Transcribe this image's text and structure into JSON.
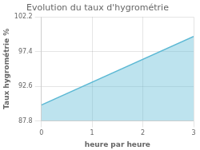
{
  "chart_data": {
    "type": "area",
    "title": "Evolution du taux d'hygrométrie",
    "x_label": "heure par heure",
    "y_label": "Taux hygrométrie %",
    "x": [
      0,
      3
    ],
    "values": [
      90.0,
      99.5
    ],
    "baseline": 87.8,
    "color": "#5bb8d4",
    "xlim": [
      0,
      3
    ],
    "xticks": [
      0,
      1,
      2,
      3
    ],
    "ylim": [
      87.8,
      102.2
    ],
    "yticks": [
      87.8,
      92.6,
      97.4,
      102.2
    ],
    "grid": true
  }
}
